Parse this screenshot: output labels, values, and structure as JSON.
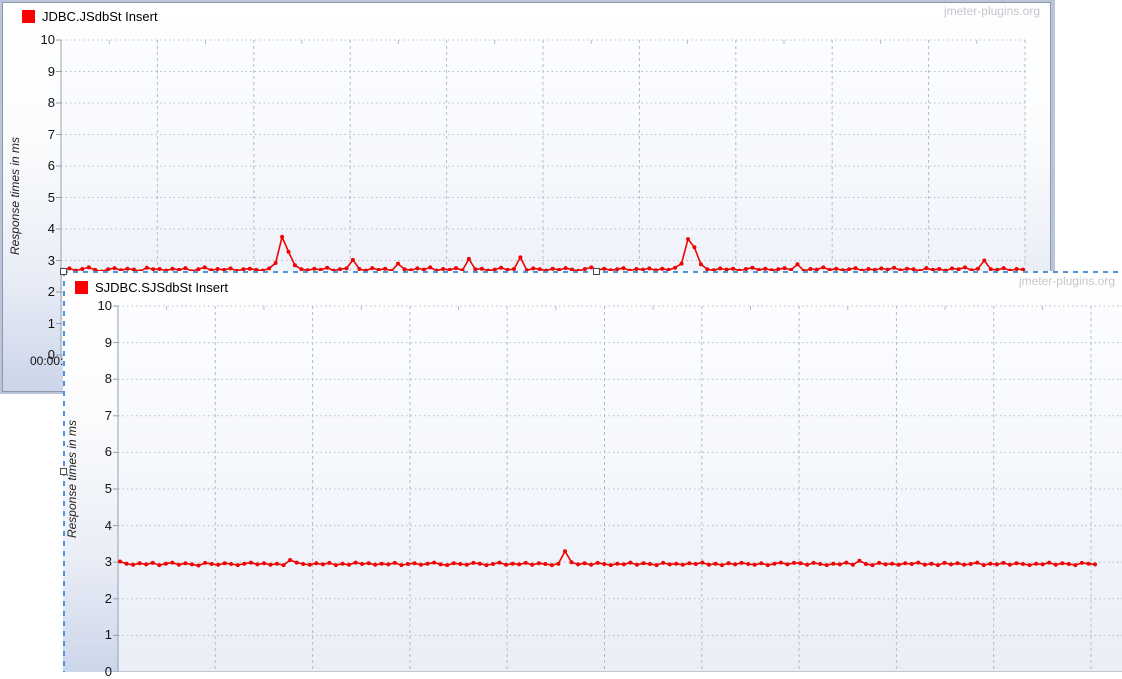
{
  "watermark": "jmeter-plugins.org",
  "selection_color": "#4e95dc",
  "grid_color": "#b6bcc7",
  "chart_data": [
    {
      "type": "line",
      "legend_label": "JDBC.JSdbSt Insert",
      "ylabel": "Response times in ms",
      "x_first_tick_label": "00:00:",
      "ylim": [
        0,
        10
      ],
      "y_tick_step": 1,
      "grid": true,
      "legend_position": "top-left",
      "line_color": "#ef0404",
      "legend_swatch_color": "#fb0000",
      "markers": true,
      "series": [
        {
          "name": "JDBC.JSdbSt Insert",
          "values": [
            2.7,
            2.75,
            2.68,
            2.73,
            2.78,
            2.7,
            2.65,
            2.72,
            2.76,
            2.69,
            2.74,
            2.71,
            2.66,
            2.77,
            2.72,
            2.73,
            2.68,
            2.74,
            2.7,
            2.76,
            2.66,
            2.72,
            2.78,
            2.69,
            2.73,
            2.7,
            2.75,
            2.67,
            2.72,
            2.74,
            2.7,
            2.68,
            2.75,
            2.92,
            3.75,
            3.28,
            2.85,
            2.72,
            2.69,
            2.74,
            2.7,
            2.77,
            2.68,
            2.72,
            2.75,
            3.02,
            2.73,
            2.68,
            2.76,
            2.7,
            2.74,
            2.67,
            2.9,
            2.72,
            2.69,
            2.75,
            2.71,
            2.78,
            2.68,
            2.73,
            2.7,
            2.76,
            2.69,
            3.05,
            2.72,
            2.74,
            2.68,
            2.71,
            2.77,
            2.7,
            2.73,
            3.1,
            2.69,
            2.75,
            2.72,
            2.68,
            2.74,
            2.7,
            2.76,
            2.71,
            2.67,
            2.73,
            2.78,
            2.7,
            2.74,
            2.69,
            2.72,
            2.76,
            2.68,
            2.73,
            2.71,
            2.75,
            2.69,
            2.74,
            2.7,
            2.77,
            2.9,
            3.68,
            3.42,
            2.88,
            2.72,
            2.69,
            2.75,
            2.71,
            2.74,
            2.68,
            2.73,
            2.77,
            2.7,
            2.74,
            2.69,
            2.72,
            2.76,
            2.7,
            2.88,
            2.67,
            2.73,
            2.71,
            2.78,
            2.7,
            2.74,
            2.69,
            2.72,
            2.76,
            2.68,
            2.73,
            2.7,
            2.75,
            2.71,
            2.77,
            2.69,
            2.74,
            2.72,
            2.67,
            2.76,
            2.7,
            2.73,
            2.68,
            2.75,
            2.72,
            2.78,
            2.69,
            2.74,
            3.0,
            2.72,
            2.7,
            2.76,
            2.68,
            2.73,
            2.71
          ]
        }
      ]
    },
    {
      "type": "line",
      "legend_label": "SJDBC.SJSdbSt Insert",
      "ylabel": "Response times in ms",
      "ylim": [
        0,
        10
      ],
      "y_tick_step": 1,
      "grid": true,
      "legend_position": "top-left",
      "line_color": "#ef0404",
      "legend_swatch_color": "#fb0000",
      "markers": true,
      "series": [
        {
          "name": "SJDBC.SJSdbSt Insert",
          "values": [
            3.02,
            2.96,
            2.93,
            2.97,
            2.94,
            2.98,
            2.92,
            2.96,
            2.99,
            2.93,
            2.97,
            2.94,
            2.91,
            2.98,
            2.95,
            2.93,
            2.97,
            2.95,
            2.92,
            2.96,
            2.99,
            2.94,
            2.97,
            2.93,
            2.96,
            2.92,
            3.06,
            2.99,
            2.95,
            2.93,
            2.97,
            2.94,
            2.98,
            2.92,
            2.96,
            2.93,
            2.99,
            2.95,
            2.97,
            2.93,
            2.96,
            2.94,
            2.98,
            2.92,
            2.95,
            2.97,
            2.93,
            2.96,
            2.99,
            2.94,
            2.92,
            2.97,
            2.95,
            2.93,
            2.98,
            2.96,
            2.92,
            2.95,
            2.99,
            2.93,
            2.96,
            2.94,
            2.98,
            2.93,
            2.97,
            2.95,
            2.92,
            2.96,
            3.3,
            3.0,
            2.94,
            2.97,
            2.93,
            2.98,
            2.95,
            2.92,
            2.96,
            2.94,
            2.99,
            2.93,
            2.97,
            2.95,
            2.92,
            2.98,
            2.94,
            2.96,
            2.93,
            2.97,
            2.95,
            2.99,
            2.93,
            2.96,
            2.92,
            2.97,
            2.94,
            2.98,
            2.95,
            2.93,
            2.97,
            2.92,
            2.96,
            2.99,
            2.94,
            2.98,
            2.97,
            2.93,
            2.98,
            2.95,
            2.92,
            2.96,
            2.94,
            2.99,
            2.93,
            3.04,
            2.95,
            2.92,
            2.98,
            2.94,
            2.96,
            2.93,
            2.97,
            2.95,
            2.99,
            2.93,
            2.96,
            2.92,
            2.98,
            2.94,
            2.97,
            2.93,
            2.95,
            2.99,
            2.92,
            2.96,
            2.94,
            2.98,
            2.93,
            2.97,
            2.95,
            2.92,
            2.96,
            2.94,
            2.99,
            2.93,
            2.97,
            2.95,
            2.92,
            2.98,
            2.96,
            2.94
          ]
        }
      ]
    }
  ]
}
